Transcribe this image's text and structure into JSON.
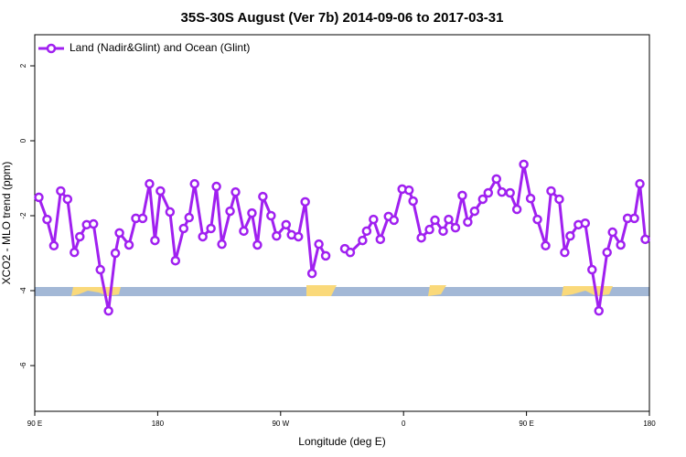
{
  "chart_data": {
    "type": "line",
    "title": "35S-30S August (Ver 7b)   2014-09-06 to 2017-03-31",
    "x_label": "Longitude (deg E)",
    "y_label": "XCO2 - MLO trend (ppm)",
    "xlim": [
      90,
      540
    ],
    "xticks": [
      {
        "value": 90,
        "label": "90 E"
      },
      180,
      {
        "value": 270,
        "label": "90 W"
      },
      {
        "value": 360,
        "label": "0"
      },
      {
        "value": 450,
        "label": "90 E"
      },
      {
        "value": 540,
        "label": "180"
      }
    ],
    "ylim": [
      -7.22,
      2.83
    ],
    "yticks": [
      2,
      0,
      -2,
      -4,
      -6
    ],
    "legend": "top-left",
    "x": [
      93,
      99,
      104,
      109,
      114,
      119,
      123,
      128,
      133,
      138,
      144,
      149,
      152,
      159,
      164,
      169,
      174,
      178,
      182,
      189,
      193,
      199,
      203,
      207,
      213,
      219,
      223,
      227,
      233,
      237,
      243,
      249,
      253,
      257,
      263,
      267,
      274,
      278,
      283,
      288,
      293,
      298,
      303,
      309,
      317,
      321,
      330,
      333,
      338,
      343,
      349,
      353,
      359,
      364,
      367,
      373,
      379,
      383,
      389,
      393,
      398,
      403,
      407,
      412,
      418,
      422,
      428,
      432,
      438,
      443,
      448,
      453,
      458,
      464,
      468,
      474,
      478,
      482,
      488,
      493,
      498,
      503,
      509,
      513,
      519,
      524,
      529,
      533,
      537
    ],
    "series": [
      {
        "name": "Land (Nadir&Glint) and Ocean (Glint)",
        "color": "#a020f0",
        "values": [
          -1.51,
          -2.1,
          -2.8,
          -1.34,
          -1.56,
          -2.98,
          -2.56,
          -2.24,
          -2.22,
          -3.44,
          -4.54,
          -3.0,
          -2.46,
          -2.78,
          -2.07,
          -2.07,
          -1.15,
          -2.66,
          -1.34,
          -1.9,
          -3.2,
          -2.34,
          -2.05,
          -1.15,
          -2.56,
          -2.34,
          -1.22,
          -2.76,
          -1.88,
          -1.37,
          -2.41,
          -1.93,
          -2.78,
          -1.49,
          -2.0,
          -2.54,
          -2.24,
          -2.51,
          -2.56,
          -1.63,
          -3.54,
          -2.76,
          -3.07,
          null,
          -2.88,
          -2.98,
          -2.66,
          -2.41,
          -2.1,
          -2.63,
          -2.02,
          -2.12,
          -1.29,
          -1.32,
          -1.61,
          -2.59,
          -2.37,
          -2.12,
          -2.41,
          -2.1,
          -2.32,
          -1.46,
          -2.17,
          -1.88,
          -1.56,
          -1.39,
          -1.02,
          -1.37,
          -1.39,
          -1.83,
          -0.63,
          -1.54,
          -2.1,
          -2.8,
          -1.34,
          -1.56,
          -2.98,
          -2.54,
          -2.24,
          -2.2,
          -3.44,
          -4.54,
          -2.98,
          -2.44,
          -2.78,
          -2.07,
          -2.07,
          -1.15,
          -2.63
        ]
      }
    ]
  }
}
